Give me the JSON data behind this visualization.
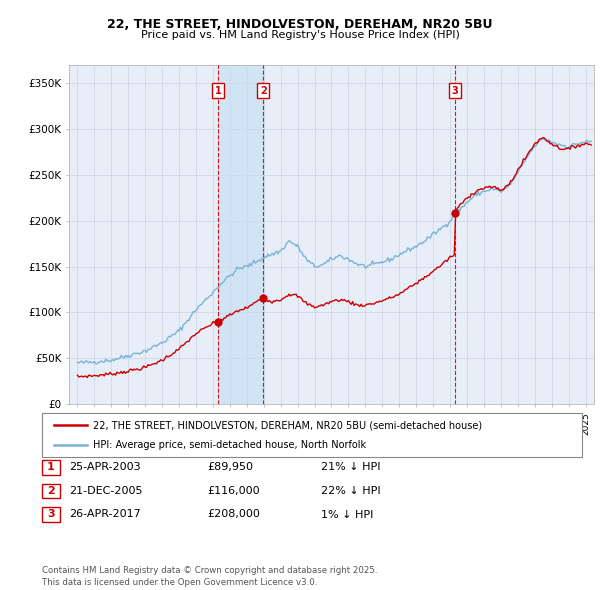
{
  "title1": "22, THE STREET, HINDOLVESTON, DEREHAM, NR20 5BU",
  "title2": "Price paid vs. HM Land Registry's House Price Index (HPI)",
  "ylabel_ticks": [
    "£0",
    "£50K",
    "£100K",
    "£150K",
    "£200K",
    "£250K",
    "£300K",
    "£350K"
  ],
  "ytick_values": [
    0,
    50000,
    100000,
    150000,
    200000,
    250000,
    300000,
    350000
  ],
  "ylim": [
    0,
    370000
  ],
  "xlim_start": 1994.5,
  "xlim_end": 2025.5,
  "hpi_color": "#7ab3d4",
  "price_color": "#cc0000",
  "grid_color": "#d0d8e8",
  "background_color": "#e8eef8",
  "shade_color": "#d0e4f5",
  "transactions": [
    {
      "label": "1",
      "date_decimal": 2003.3,
      "price": 89950
    },
    {
      "label": "2",
      "date_decimal": 2005.97,
      "price": 116000
    },
    {
      "label": "3",
      "date_decimal": 2017.3,
      "price": 208000
    }
  ],
  "legend_entries": [
    "22, THE STREET, HINDOLVESTON, DEREHAM, NR20 5BU (semi-detached house)",
    "HPI: Average price, semi-detached house, North Norfolk"
  ],
  "table_rows": [
    {
      "num": "1",
      "date": "25-APR-2003",
      "price": "£89,950",
      "hpi_diff": "21% ↓ HPI"
    },
    {
      "num": "2",
      "date": "21-DEC-2005",
      "price": "£116,000",
      "hpi_diff": "22% ↓ HPI"
    },
    {
      "num": "3",
      "date": "26-APR-2017",
      "price": "£208,000",
      "hpi_diff": "1% ↓ HPI"
    }
  ],
  "footer": "Contains HM Land Registry data © Crown copyright and database right 2025.\nThis data is licensed under the Open Government Licence v3.0."
}
